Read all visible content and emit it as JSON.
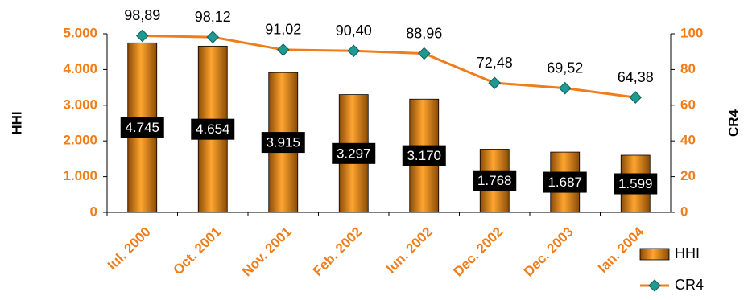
{
  "chart_data": {
    "type": "bar",
    "categories": [
      "Iul. 2000",
      "Oct. 2001",
      "Nov. 2001",
      "Feb. 2002",
      "Iun. 2002",
      "Dec. 2002",
      "Dec. 2003",
      "Ian. 2004"
    ],
    "series": [
      {
        "name": "HHI",
        "type": "bar",
        "color": "#e8870f",
        "values": [
          4745,
          4654,
          3915,
          3297,
          3170,
          1768,
          1687,
          1599
        ],
        "value_labels": [
          "4.745",
          "4.654",
          "3.915",
          "3.297",
          "3.170",
          "1.768",
          "1.687",
          "1.599"
        ]
      },
      {
        "name": "CR4",
        "type": "line",
        "axis": "y2",
        "color": "#f07d1a",
        "marker_color": "#1f9a93",
        "values": [
          98.89,
          98.12,
          91.02,
          90.4,
          88.96,
          72.48,
          69.52,
          64.38
        ],
        "value_labels": [
          "98,89",
          "98,12",
          "91,02",
          "90,40",
          "88,96",
          "72,48",
          "69,52",
          "64,38"
        ]
      }
    ],
    "y_label": "HHI",
    "y2_label": "CR4",
    "ylim": [
      0,
      5000
    ],
    "yticks": [
      0,
      {
        "value": 1000,
        "label": "1.000"
      },
      {
        "value": 2000,
        "label": "2.000"
      },
      {
        "value": 3000,
        "label": "3.000"
      },
      {
        "value": 4000,
        "label": "4.000"
      },
      {
        "value": 5000,
        "label": "5.000"
      }
    ],
    "y2lim": [
      0,
      100
    ],
    "y2ticks": [
      0,
      20,
      40,
      60,
      80,
      100
    ],
    "legend": "bottom-right"
  }
}
